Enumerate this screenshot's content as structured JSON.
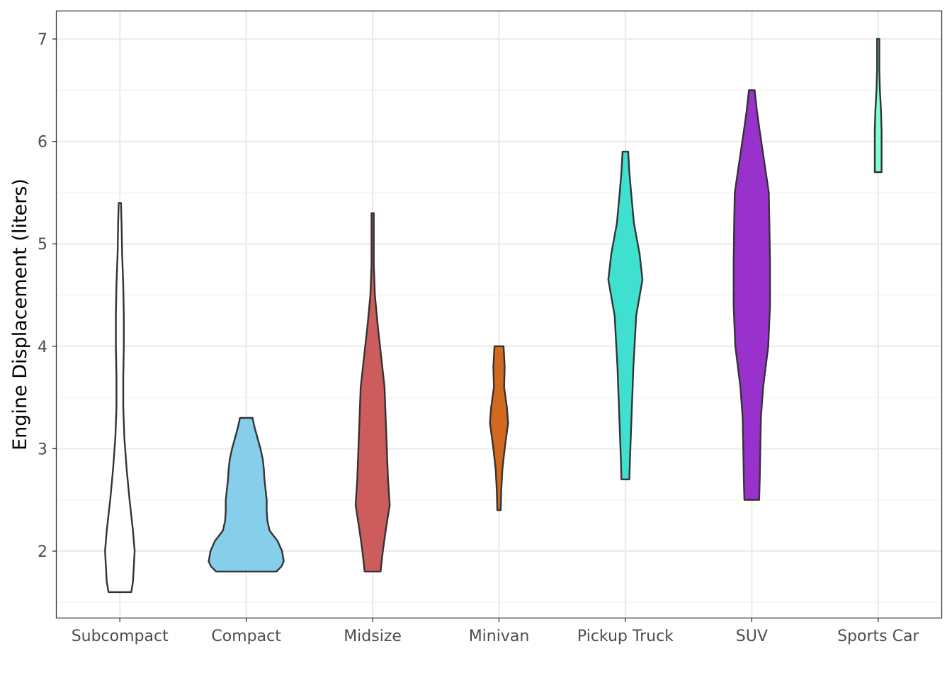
{
  "chart_data": {
    "type": "violin",
    "title": "",
    "xlabel": "",
    "ylabel": "Engine Displacement (liters)",
    "ylim": [
      1.35,
      7.27
    ],
    "y_ticks": [
      2,
      3,
      4,
      5,
      6,
      7
    ],
    "grid": true,
    "legend": "none",
    "categories": [
      "Subcompact",
      "Compact",
      "Midsize",
      "Minivan",
      "Pickup Truck",
      "SUV",
      "Sports Car"
    ],
    "series": [
      {
        "category": "Subcompact",
        "fill": "#ffffff",
        "min": 1.6,
        "max": 5.4,
        "profile": [
          [
            1.6,
            0.2
          ],
          [
            1.7,
            0.23
          ],
          [
            1.8,
            0.24
          ],
          [
            2.0,
            0.26
          ],
          [
            2.2,
            0.23
          ],
          [
            2.5,
            0.17
          ],
          [
            2.8,
            0.12
          ],
          [
            3.1,
            0.08
          ],
          [
            3.4,
            0.06
          ],
          [
            3.7,
            0.06
          ],
          [
            4.0,
            0.07
          ],
          [
            4.3,
            0.07
          ],
          [
            4.6,
            0.06
          ],
          [
            4.9,
            0.04
          ],
          [
            5.2,
            0.03
          ],
          [
            5.4,
            0.02
          ]
        ]
      },
      {
        "category": "Compact",
        "fill": "#87CEEB",
        "min": 1.8,
        "max": 3.3,
        "profile": [
          [
            1.8,
            0.53
          ],
          [
            1.85,
            0.62
          ],
          [
            1.9,
            0.66
          ],
          [
            2.0,
            0.63
          ],
          [
            2.1,
            0.55
          ],
          [
            2.2,
            0.41
          ],
          [
            2.3,
            0.37
          ],
          [
            2.4,
            0.36
          ],
          [
            2.5,
            0.36
          ],
          [
            2.6,
            0.34
          ],
          [
            2.7,
            0.32
          ],
          [
            2.8,
            0.31
          ],
          [
            2.9,
            0.29
          ],
          [
            3.0,
            0.25
          ],
          [
            3.1,
            0.2
          ],
          [
            3.2,
            0.15
          ],
          [
            3.3,
            0.11
          ]
        ]
      },
      {
        "category": "Midsize",
        "fill": "#CD5C5C",
        "min": 1.8,
        "max": 5.3,
        "profile": [
          [
            1.8,
            0.14
          ],
          [
            2.0,
            0.18
          ],
          [
            2.2,
            0.23
          ],
          [
            2.45,
            0.3
          ],
          [
            2.7,
            0.27
          ],
          [
            3.0,
            0.25
          ],
          [
            3.3,
            0.23
          ],
          [
            3.6,
            0.21
          ],
          [
            3.9,
            0.15
          ],
          [
            4.2,
            0.09
          ],
          [
            4.5,
            0.04
          ],
          [
            4.8,
            0.02
          ],
          [
            5.1,
            0.02
          ],
          [
            5.3,
            0.02
          ]
        ]
      },
      {
        "category": "Minivan",
        "fill": "#D2691E",
        "min": 2.4,
        "max": 4.0,
        "profile": [
          [
            2.4,
            0.03
          ],
          [
            2.6,
            0.04
          ],
          [
            2.8,
            0.06
          ],
          [
            3.0,
            0.1
          ],
          [
            3.25,
            0.16
          ],
          [
            3.4,
            0.14
          ],
          [
            3.6,
            0.09
          ],
          [
            3.8,
            0.1
          ],
          [
            4.0,
            0.08
          ]
        ]
      },
      {
        "category": "Pickup Truck",
        "fill": "#40E0D0",
        "min": 2.7,
        "max": 5.9,
        "profile": [
          [
            2.7,
            0.07
          ],
          [
            2.9,
            0.08
          ],
          [
            3.2,
            0.1
          ],
          [
            3.5,
            0.12
          ],
          [
            3.8,
            0.14
          ],
          [
            4.0,
            0.16
          ],
          [
            4.3,
            0.19
          ],
          [
            4.65,
            0.3
          ],
          [
            4.9,
            0.25
          ],
          [
            5.2,
            0.15
          ],
          [
            5.5,
            0.1
          ],
          [
            5.7,
            0.07
          ],
          [
            5.9,
            0.05
          ]
        ]
      },
      {
        "category": "SUV",
        "fill": "#9932CC",
        "min": 2.5,
        "max": 6.5,
        "profile": [
          [
            2.5,
            0.13
          ],
          [
            2.7,
            0.14
          ],
          [
            3.0,
            0.15
          ],
          [
            3.3,
            0.16
          ],
          [
            3.6,
            0.2
          ],
          [
            4.0,
            0.29
          ],
          [
            4.4,
            0.32
          ],
          [
            4.8,
            0.32
          ],
          [
            5.2,
            0.31
          ],
          [
            5.5,
            0.3
          ],
          [
            5.8,
            0.22
          ],
          [
            6.1,
            0.14
          ],
          [
            6.3,
            0.09
          ],
          [
            6.5,
            0.05
          ]
        ]
      },
      {
        "category": "Sports Car",
        "fill": "#7FFFD4",
        "min": 5.7,
        "max": 7.0,
        "profile": [
          [
            5.7,
            0.06
          ],
          [
            5.9,
            0.06
          ],
          [
            6.1,
            0.06
          ],
          [
            6.3,
            0.05
          ],
          [
            6.5,
            0.03
          ],
          [
            6.7,
            0.02
          ],
          [
            7.0,
            0.02
          ]
        ]
      }
    ],
    "colors": {
      "outline": "#333333",
      "grid_major": "#ebebeb",
      "grid_minor": "#f4f4f4",
      "panel_border": "#333333"
    }
  }
}
